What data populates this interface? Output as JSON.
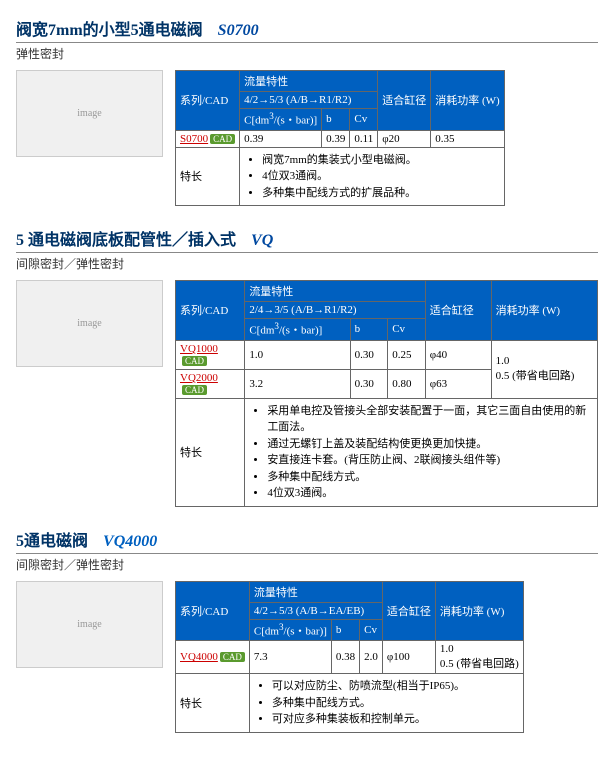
{
  "colors": {
    "header_bg": "#0060c0",
    "header_fg": "#ffffff",
    "model1": "#0048a0",
    "model2": "#0048a0",
    "model3": "#0060c0",
    "link": "#c00",
    "cad_bg": "#5a9a2e"
  },
  "hdr": {
    "series": "系列/CAD",
    "flow": "流量特性",
    "fit": "适合缸径",
    "power": "消耗功率 (W)",
    "feat": "特长",
    "cdms": "C[dm",
    "cdms_unit": "/(s・bar)]",
    "b": "b",
    "cv": "Cv",
    "cad": "CAD"
  },
  "s1": {
    "title": "阀宽7mm的小型5通电磁阀",
    "model": "S0700",
    "subtitle": "弹性密封",
    "flow_sub": "4/2→5/3 (A/B→R1/R2)",
    "row": {
      "series": "S0700",
      "c": "0.39",
      "b": "0.39",
      "cv": "0.11",
      "fit": "φ20",
      "pw": "0.35"
    },
    "feat": [
      "阀宽7mm的集装式小型电磁阀。",
      "4位双3通阀。",
      "多种集中配线方式的扩展品种。"
    ]
  },
  "s2": {
    "title": "5 通电磁阀底板配管性／插入式",
    "model": "VQ",
    "subtitle": "间隙密封／弹性密封",
    "flow_sub": "2/4→3/5 (A/B→R1/R2)",
    "rows": [
      {
        "series": "VQ1000",
        "c": "1.0",
        "b": "0.30",
        "cv": "0.25",
        "fit": "φ40"
      },
      {
        "series": "VQ2000",
        "c": "3.2",
        "b": "0.30",
        "cv": "0.80",
        "fit": "φ63"
      }
    ],
    "power": "1.0\n0.5 (带省电回路)",
    "feat": [
      "采用单电控及管接头全部安装配置于一面，其它三面自由使用的新工面法。",
      "通过无螺钉上盖及装配结构使更换更加快捷。",
      "安直接连卡套。(背压防止阀、2联阀接头组件等)",
      "多种集中配线方式。",
      "4位双3通阀。"
    ]
  },
  "s3": {
    "title": "5通电磁阀",
    "model": "VQ4000",
    "subtitle": "间隙密封／弹性密封",
    "flow_sub": "4/2→5/3 (A/B→EA/EB)",
    "row": {
      "series": "VQ4000",
      "c": "7.3",
      "b": "0.38",
      "cv": "2.0",
      "fit": "φ100",
      "pw": "1.0\n0.5 (带省电回路)"
    },
    "feat": [
      "可以对应防尘、防喷流型(相当于IP65)。",
      "多种集中配线方式。",
      "可对应多种集装板和控制单元。"
    ]
  }
}
